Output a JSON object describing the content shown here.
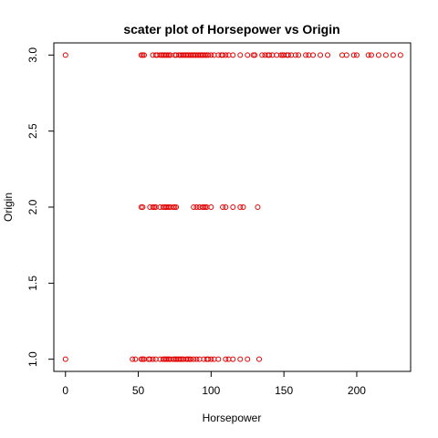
{
  "chart_data": {
    "type": "scatter",
    "title": "scater plot of Horsepower vs Origin",
    "xlabel": "Horsepower",
    "ylabel": "Origin",
    "xlim": [
      -8,
      237
    ],
    "ylim": [
      0.92,
      3.08
    ],
    "xticks": [
      0,
      50,
      100,
      150,
      200
    ],
    "xtick_labels": [
      "0",
      "50",
      "100",
      "150",
      "200"
    ],
    "yticks": [
      1.0,
      1.5,
      2.0,
      2.5,
      3.0
    ],
    "ytick_labels": [
      "1.0",
      "1.5",
      "2.0",
      "2.5",
      "3.0"
    ],
    "marker_color": "#e00000",
    "grid": false,
    "series": [
      {
        "x": [
          0,
          52,
          53,
          54,
          60,
          62,
          63,
          65,
          66,
          67,
          68,
          69,
          70,
          71,
          72,
          75,
          76,
          78,
          79,
          80,
          81,
          82,
          83,
          84,
          85,
          86,
          87,
          88,
          89,
          90,
          91,
          92,
          93,
          94,
          95,
          96,
          97,
          98,
          100,
          102,
          105,
          107,
          108,
          110,
          112,
          115,
          120,
          125,
          129,
          130,
          135,
          137,
          139,
          140,
          142,
          145,
          148,
          149,
          150,
          152,
          153,
          155,
          158,
          160,
          165,
          167,
          170,
          175,
          180,
          190,
          193,
          198,
          200,
          208,
          210,
          215,
          220,
          225,
          230
        ],
        "y": [
          3,
          3,
          3,
          3,
          3,
          3,
          3,
          3,
          3,
          3,
          3,
          3,
          3,
          3,
          3,
          3,
          3,
          3,
          3,
          3,
          3,
          3,
          3,
          3,
          3,
          3,
          3,
          3,
          3,
          3,
          3,
          3,
          3,
          3,
          3,
          3,
          3,
          3,
          3,
          3,
          3,
          3,
          3,
          3,
          3,
          3,
          3,
          3,
          3,
          3,
          3,
          3,
          3,
          3,
          3,
          3,
          3,
          3,
          3,
          3,
          3,
          3,
          3,
          3,
          3,
          3,
          3,
          3,
          3,
          3,
          3,
          3,
          3,
          3,
          3,
          3,
          3,
          3,
          3
        ]
      },
      {
        "x": [
          52,
          53,
          58,
          60,
          61,
          62,
          65,
          67,
          68,
          69,
          70,
          71,
          72,
          74,
          75,
          76,
          88,
          90,
          92,
          94,
          95,
          96,
          97,
          100,
          108,
          110,
          115,
          120,
          122,
          132
        ],
        "y": [
          2,
          2,
          2,
          2,
          2,
          2,
          2,
          2,
          2,
          2,
          2,
          2,
          2,
          2,
          2,
          2,
          2,
          2,
          2,
          2,
          2,
          2,
          2,
          2,
          2,
          2,
          2,
          2,
          2,
          2
        ]
      },
      {
        "x": [
          0,
          46,
          48,
          52,
          53,
          54,
          57,
          58,
          60,
          62,
          65,
          67,
          68,
          69,
          70,
          71,
          72,
          74,
          75,
          76,
          77,
          78,
          79,
          80,
          81,
          83,
          84,
          85,
          86,
          88,
          90,
          92,
          95,
          97,
          98,
          100,
          102,
          105,
          110,
          112,
          115,
          120,
          125,
          133
        ],
        "y": [
          1,
          1,
          1,
          1,
          1,
          1,
          1,
          1,
          1,
          1,
          1,
          1,
          1,
          1,
          1,
          1,
          1,
          1,
          1,
          1,
          1,
          1,
          1,
          1,
          1,
          1,
          1,
          1,
          1,
          1,
          1,
          1,
          1,
          1,
          1,
          1,
          1,
          1,
          1,
          1,
          1,
          1,
          1,
          1
        ]
      }
    ]
  }
}
